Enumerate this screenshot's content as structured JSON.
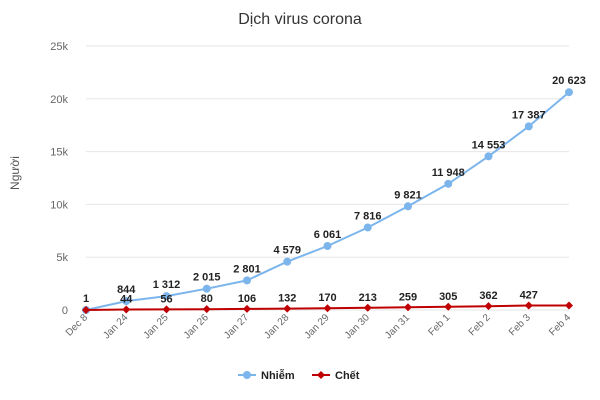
{
  "chart_data": {
    "type": "line",
    "title": "Dịch virus corona",
    "xlabel": "",
    "ylabel": "Người",
    "ylim": [
      0,
      25000
    ],
    "yticks": [
      {
        "value": 0,
        "label": "0"
      },
      {
        "value": 5000,
        "label": "5k"
      },
      {
        "value": 10000,
        "label": "10k"
      },
      {
        "value": 15000,
        "label": "15k"
      },
      {
        "value": 20000,
        "label": "20k"
      },
      {
        "value": 25000,
        "label": "25k"
      }
    ],
    "categories": [
      "Dec 8",
      "Jan 24",
      "Jan 25",
      "Jan 26",
      "Jan 27",
      "Jan 28",
      "Jan 29",
      "Jan 30",
      "Jan 31",
      "Feb 1",
      "Feb 2",
      "Feb 3",
      "Feb 4"
    ],
    "grid": true,
    "legend_position": "bottom",
    "series": [
      {
        "name": "Nhiễm",
        "color": "#7cb5ec",
        "marker": "circle",
        "values": [
          1,
          844,
          1312,
          2015,
          2801,
          4579,
          6061,
          7816,
          9821,
          11948,
          14553,
          17387,
          20623
        ],
        "labels": [
          "1",
          "844",
          "1 312",
          "2 015",
          "2 801",
          "4 579",
          "6 061",
          "7 816",
          "9 821",
          "11 948",
          "14 553",
          "17 387",
          "20 623"
        ]
      },
      {
        "name": "Chết",
        "color": "#c00000",
        "marker": "diamond",
        "values": [
          0,
          44,
          56,
          80,
          106,
          132,
          170,
          213,
          259,
          305,
          362,
          427,
          427
        ],
        "labels": [
          "",
          "44",
          "56",
          "80",
          "106",
          "132",
          "170",
          "213",
          "259",
          "305",
          "362",
          "427",
          ""
        ]
      }
    ]
  }
}
